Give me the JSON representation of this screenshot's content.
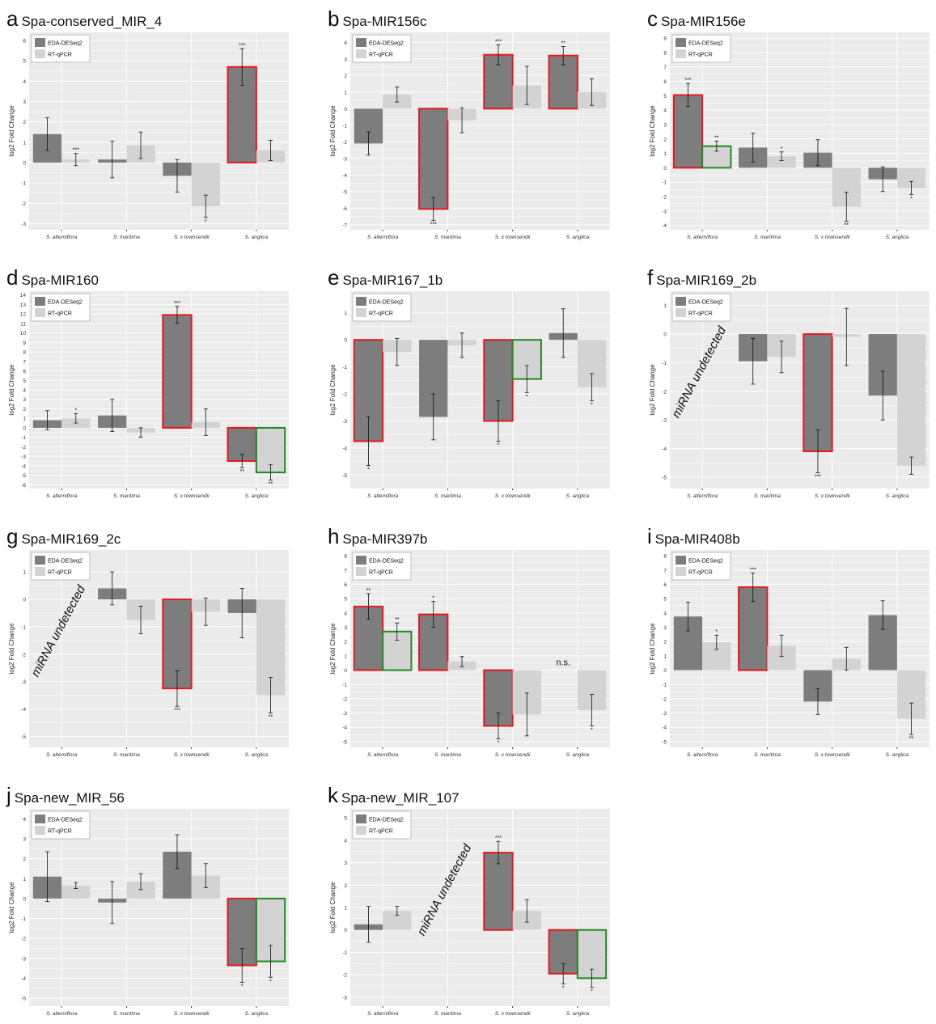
{
  "legend": {
    "deseq": "EDA-DESeq2",
    "qpcr": "RT-qPCR"
  },
  "ylabel": "log2 Fold Change",
  "categories": [
    "S. alterniflora",
    "S. maritima",
    "S. x townsendii",
    "S. anglica"
  ],
  "colors": {
    "deseq": "#7d7d7d",
    "qpcr": "#d3d3d3",
    "panel_bg": "#ebebeb",
    "grid": "#ffffff",
    "red": "#e8191e",
    "green": "#1e8c1e"
  },
  "chart_data": [
    {
      "id": "a",
      "title": "Spa-conserved_MIR_4",
      "type": "bar",
      "ylim": [
        -3.3,
        6.4
      ],
      "ticks": [
        -3,
        -2,
        -1,
        0,
        1,
        2,
        3,
        4,
        5,
        6
      ],
      "series": [
        {
          "name": "EDA-DESeq2",
          "values": [
            1.4,
            0.15,
            -0.65,
            4.7
          ],
          "err": [
            0.8,
            0.9,
            0.8,
            0.9
          ]
        },
        {
          "name": "RT-qPCR",
          "values": [
            0.15,
            0.85,
            -2.15,
            0.6
          ],
          "err": [
            0.3,
            0.65,
            0.55,
            0.5
          ]
        }
      ],
      "sig": [
        [
          "",
          "***"
        ],
        [
          "",
          ""
        ],
        [
          "",
          "*"
        ],
        [
          "***",
          ""
        ]
      ],
      "box": [
        [
          "",
          ""
        ],
        [
          "",
          ""
        ],
        [
          "",
          ""
        ],
        [
          "red",
          ""
        ]
      ],
      "undetected": "",
      "ns": [],
      "ylabel": "log2 Fold Change"
    },
    {
      "id": "b",
      "title": "Spa-MIR156c",
      "type": "bar",
      "ylim": [
        -7.3,
        4.6
      ],
      "ticks": [
        -7,
        -6,
        -5,
        -4,
        -3,
        -2,
        -1,
        0,
        1,
        2,
        3,
        4
      ],
      "series": [
        {
          "name": "EDA-DESeq2",
          "values": [
            -2.1,
            -6.05,
            3.25,
            3.2
          ],
          "err": [
            0.7,
            0.7,
            0.6,
            0.55
          ]
        },
        {
          "name": "RT-qPCR",
          "values": [
            0.85,
            -0.7,
            1.4,
            1.0
          ],
          "err": [
            0.45,
            0.75,
            1.15,
            0.8
          ]
        }
      ],
      "sig": [
        [
          "",
          ""
        ],
        [
          "***",
          ""
        ],
        [
          "***",
          ""
        ],
        [
          "**",
          ""
        ]
      ],
      "box": [
        [
          "",
          ""
        ],
        [
          "red",
          ""
        ],
        [
          "red",
          ""
        ],
        [
          "red",
          ""
        ]
      ],
      "undetected": "",
      "ns": [],
      "ylabel": "log2 Fold Change"
    },
    {
      "id": "c",
      "title": "Spa-MIR156e",
      "type": "bar",
      "ylim": [
        -4.3,
        9.4
      ],
      "ticks": [
        -4,
        -3,
        -2,
        -1,
        0,
        1,
        2,
        3,
        4,
        5,
        6,
        7,
        8,
        9
      ],
      "series": [
        {
          "name": "EDA-DESeq2",
          "values": [
            5.05,
            1.4,
            1.05,
            -0.8
          ],
          "err": [
            0.8,
            1.0,
            0.9,
            0.85
          ]
        },
        {
          "name": "RT-qPCR",
          "values": [
            1.5,
            0.8,
            -2.7,
            -1.4
          ],
          "err": [
            0.35,
            0.3,
            1.0,
            0.45
          ]
        }
      ],
      "sig": [
        [
          "***",
          "**"
        ],
        [
          "",
          "*"
        ],
        [
          "",
          "**"
        ],
        [
          "",
          "*"
        ]
      ],
      "box": [
        [
          "red",
          "green"
        ],
        [
          "",
          ""
        ],
        [
          "",
          ""
        ],
        [
          "",
          ""
        ]
      ],
      "undetected": "",
      "ns": [],
      "ylabel": "log2 Fold Change"
    },
    {
      "id": "d",
      "title": "Spa-MIR160",
      "type": "bar",
      "ylim": [
        -6.4,
        14.4
      ],
      "ticks": [
        -6,
        -5,
        -4,
        -3,
        -2,
        -1,
        0,
        1,
        2,
        3,
        4,
        5,
        6,
        7,
        8,
        9,
        10,
        11,
        12,
        13,
        14
      ],
      "series": [
        {
          "name": "EDA-DESeq2",
          "values": [
            0.8,
            1.3,
            11.9,
            -3.5
          ],
          "err": [
            1.0,
            1.7,
            0.9,
            0.7
          ]
        },
        {
          "name": "RT-qPCR",
          "values": [
            1.0,
            -0.5,
            0.6,
            -4.7
          ],
          "err": [
            0.5,
            0.5,
            1.4,
            0.8
          ]
        }
      ],
      "sig": [
        [
          "",
          "*"
        ],
        [
          "",
          ""
        ],
        [
          "***",
          ""
        ],
        [
          "**",
          "**"
        ]
      ],
      "box": [
        [
          "",
          ""
        ],
        [
          "",
          ""
        ],
        [
          "red",
          ""
        ],
        [
          "red",
          "green"
        ]
      ],
      "undetected": "",
      "ns": [],
      "ylabel": "log2 Fold Change"
    },
    {
      "id": "e",
      "title": "Spa-MIR167_1b",
      "type": "bar",
      "ylim": [
        -5.5,
        1.8
      ],
      "ticks": [
        -5,
        -4,
        -3,
        -2,
        -1,
        0,
        1
      ],
      "series": [
        {
          "name": "EDA-DESeq2",
          "values": [
            -3.75,
            -2.85,
            -3.0,
            0.25
          ],
          "err": [
            0.9,
            0.85,
            0.75,
            0.9
          ]
        },
        {
          "name": "RT-qPCR",
          "values": [
            -0.45,
            -0.2,
            -1.45,
            -1.75
          ],
          "err": [
            0.5,
            0.45,
            0.5,
            0.5
          ]
        }
      ],
      "sig": [
        [
          "*",
          ""
        ],
        [
          "",
          ""
        ],
        [
          "*",
          "*"
        ],
        [
          "",
          "*"
        ]
      ],
      "box": [
        [
          "red",
          ""
        ],
        [
          "",
          ""
        ],
        [
          "red",
          "green"
        ],
        [
          "",
          ""
        ]
      ],
      "undetected": "",
      "ns": [],
      "ylabel": "log2 Fold Change"
    },
    {
      "id": "f",
      "title": "Spa-MIR169_2b",
      "type": "bar",
      "ylim": [
        -5.4,
        1.5
      ],
      "ticks": [
        -5,
        -4,
        -3,
        -2,
        -1,
        0,
        1
      ],
      "series": [
        {
          "name": "EDA-DESeq2",
          "values": [
            null,
            -0.95,
            -4.1,
            -2.15
          ],
          "err": [
            0,
            0.8,
            0.75,
            0.85
          ]
        },
        {
          "name": "RT-qPCR",
          "values": [
            null,
            -0.8,
            -0.1,
            -4.6
          ],
          "err": [
            0,
            0.55,
            1.0,
            0.3
          ]
        }
      ],
      "sig": [
        [
          "",
          ""
        ],
        [
          "",
          ""
        ],
        [
          "***",
          ""
        ],
        [
          "",
          ""
        ]
      ],
      "box": [
        [
          "",
          ""
        ],
        [
          "",
          ""
        ],
        [
          "red",
          ""
        ],
        [
          "",
          ""
        ]
      ],
      "undetected": "miRNA undetected",
      "ns": [],
      "ylabel": "log2 Fold Change"
    },
    {
      "id": "g",
      "title": "Spa-MIR169_2c",
      "type": "bar",
      "ylim": [
        -5.4,
        1.8
      ],
      "ticks": [
        -5,
        -4,
        -3,
        -2,
        -1,
        0,
        1
      ],
      "series": [
        {
          "name": "EDA-DESeq2",
          "values": [
            null,
            0.4,
            -3.25,
            -0.5
          ],
          "err": [
            0,
            0.6,
            0.65,
            0.9
          ]
        },
        {
          "name": "RT-qPCR",
          "values": [
            null,
            -0.75,
            -0.45,
            -3.5
          ],
          "err": [
            0,
            0.5,
            0.5,
            0.65
          ]
        }
      ],
      "sig": [
        [
          "",
          ""
        ],
        [
          "",
          ""
        ],
        [
          "***",
          ""
        ],
        [
          "",
          "**"
        ]
      ],
      "box": [
        [
          "",
          ""
        ],
        [
          "",
          ""
        ],
        [
          "red",
          ""
        ],
        [
          "",
          ""
        ]
      ],
      "undetected": "miRNA undetected",
      "ns": [],
      "ylabel": "log2 Fold Change"
    },
    {
      "id": "h",
      "title": "Spa-MIR397b",
      "type": "bar",
      "ylim": [
        -5.4,
        8.4
      ],
      "ticks": [
        -5,
        -4,
        -3,
        -2,
        -1,
        0,
        1,
        2,
        3,
        4,
        5,
        6,
        7,
        8
      ],
      "series": [
        {
          "name": "EDA-DESeq2",
          "values": [
            4.45,
            3.9,
            -3.9,
            null
          ],
          "err": [
            0.9,
            0.9,
            0.9,
            0
          ]
        },
        {
          "name": "RT-qPCR",
          "values": [
            2.7,
            0.6,
            -3.1,
            -2.8
          ],
          "err": [
            0.6,
            0.35,
            1.5,
            1.1
          ]
        }
      ],
      "sig": [
        [
          "**",
          "**"
        ],
        [
          "*",
          ""
        ],
        [
          "*",
          ""
        ],
        [
          "",
          "*"
        ]
      ],
      "box": [
        [
          "red",
          "green"
        ],
        [
          "red",
          ""
        ],
        [
          "red",
          ""
        ],
        [
          "",
          ""
        ]
      ],
      "undetected": "",
      "ns": [
        "n.s."
      ],
      "ylabel": "log2 Fold Change"
    },
    {
      "id": "i",
      "title": "Spa-MIR408b",
      "type": "bar",
      "ylim": [
        -5.4,
        8.4
      ],
      "ticks": [
        -5,
        -4,
        -3,
        -2,
        -1,
        0,
        1,
        2,
        3,
        4,
        5,
        6,
        7,
        8
      ],
      "series": [
        {
          "name": "EDA-DESeq2",
          "values": [
            3.75,
            5.8,
            -2.2,
            3.85
          ],
          "err": [
            1.0,
            1.0,
            0.9,
            1.0
          ]
        },
        {
          "name": "RT-qPCR",
          "values": [
            1.95,
            1.7,
            0.8,
            -3.4
          ],
          "err": [
            0.5,
            0.75,
            0.8,
            1.1
          ]
        }
      ],
      "sig": [
        [
          "",
          "*"
        ],
        [
          "***",
          ""
        ],
        [
          "",
          ""
        ],
        [
          "",
          "**"
        ]
      ],
      "box": [
        [
          "",
          ""
        ],
        [
          "red",
          ""
        ],
        [
          "",
          ""
        ],
        [
          "",
          ""
        ]
      ],
      "undetected": "",
      "ns": [],
      "ylabel": "log2 Fold Change"
    },
    {
      "id": "j",
      "title": "Spa-new_MIR_56",
      "type": "bar",
      "ylim": [
        -5.4,
        4.5
      ],
      "ticks": [
        -5,
        -4,
        -3,
        -2,
        -1,
        0,
        1,
        2,
        3,
        4
      ],
      "series": [
        {
          "name": "EDA-DESeq2",
          "values": [
            1.1,
            -0.2,
            2.35,
            -3.35
          ],
          "err": [
            1.25,
            1.05,
            0.85,
            0.85
          ]
        },
        {
          "name": "RT-qPCR",
          "values": [
            0.65,
            0.85,
            1.15,
            -3.15
          ],
          "err": [
            0.15,
            0.4,
            0.6,
            0.8
          ]
        }
      ],
      "sig": [
        [
          "",
          ""
        ],
        [
          "",
          ""
        ],
        [
          "",
          ""
        ],
        [
          "*",
          "*"
        ]
      ],
      "box": [
        [
          "",
          ""
        ],
        [
          "",
          ""
        ],
        [
          "",
          ""
        ],
        [
          "red",
          "green"
        ]
      ],
      "undetected": "",
      "ns": [],
      "ylabel": "log2 Fold Change"
    },
    {
      "id": "k",
      "title": "Spa-new_MIR_107",
      "type": "bar",
      "ylim": [
        -3.4,
        5.4
      ],
      "ticks": [
        -3,
        -2,
        -1,
        0,
        1,
        2,
        3,
        4,
        5
      ],
      "series": [
        {
          "name": "EDA-DESeq2",
          "values": [
            0.25,
            null,
            3.45,
            -1.95
          ],
          "err": [
            0.8,
            0,
            0.5,
            0.45
          ]
        },
        {
          "name": "RT-qPCR",
          "values": [
            0.85,
            null,
            0.85,
            -2.15
          ],
          "err": [
            0.2,
            0,
            0.5,
            0.4
          ]
        }
      ],
      "sig": [
        [
          "",
          ""
        ],
        [
          "",
          ""
        ],
        [
          "***",
          ""
        ],
        [
          "*",
          "*"
        ]
      ],
      "box": [
        [
          "",
          ""
        ],
        [
          "",
          ""
        ],
        [
          "red",
          ""
        ],
        [
          "red",
          "green"
        ]
      ],
      "undetected": "miRNA undetected",
      "ns": [],
      "ylabel": "log2 Fold Change"
    }
  ]
}
